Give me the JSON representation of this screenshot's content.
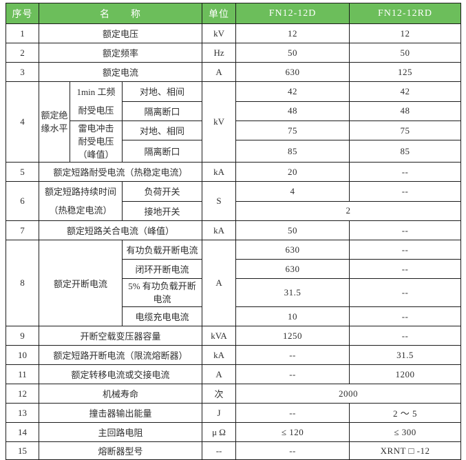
{
  "colors": {
    "header_bg": "#6cbe5b",
    "header_text": "#ffffff",
    "border": "#1a1a1a",
    "body_text": "#2e2e2e"
  },
  "table": {
    "header": {
      "seq": "序号",
      "name": "名　　称",
      "unit": "单位",
      "model_d": "FN12-12D",
      "model_rd": "FN12-12RD"
    },
    "r1": {
      "seq": "1",
      "name": "额定电压",
      "unit": "kV",
      "d": "12",
      "rd": "12"
    },
    "r2": {
      "seq": "2",
      "name": "额定频率",
      "unit": "Hz",
      "d": "50",
      "rd": "50"
    },
    "r3": {
      "seq": "3",
      "name": "额定电流",
      "unit": "A",
      "d": "630",
      "rd": "125"
    },
    "r4": {
      "seq": "4",
      "group_lines": [
        "额定绝",
        "缘水平"
      ],
      "unit": "kV",
      "sub1": {
        "label_lines": [
          "1min 工频",
          "耐受电压"
        ],
        "item": "对地、相间",
        "d": "42",
        "rd": "42"
      },
      "sub2": {
        "item": "隔离断口",
        "d": "48",
        "rd": "48"
      },
      "sub3": {
        "label_lines": [
          "雷电冲击",
          "耐受电压",
          "（峰值）"
        ],
        "item": "对地、相同",
        "d": "75",
        "rd": "75"
      },
      "sub4": {
        "item": "隔离断口",
        "d": "85",
        "rd": "85"
      }
    },
    "r5": {
      "seq": "5",
      "name": "额定短路耐受电流（热稳定电流）",
      "unit": "kA",
      "d": "20",
      "rd": "--"
    },
    "r6": {
      "seq": "6",
      "group_lines": [
        "额定短路持续时间",
        "（热稳定电流）"
      ],
      "unit": "S",
      "sub1": {
        "item": "负荷开关",
        "d": "4",
        "rd": "--"
      },
      "sub2": {
        "item": "接地开关",
        "merged": "2"
      }
    },
    "r7": {
      "seq": "7",
      "name": "额定短路关合电流（峰值）",
      "unit": "kA",
      "d": "50",
      "rd": "--"
    },
    "r8": {
      "seq": "8",
      "group": "额定开断电流",
      "unit": "A",
      "sub1": {
        "item": "有功负载开断电流",
        "d": "630",
        "rd": "--"
      },
      "sub2": {
        "item": "闭环开断电流",
        "d": "630",
        "rd": "--"
      },
      "sub3": {
        "label_lines": [
          "5% 有功负载开断",
          "电流"
        ],
        "d": "31.5",
        "rd": "--"
      },
      "sub4": {
        "item": "电缆充电电流",
        "d": "10",
        "rd": "--"
      }
    },
    "r9": {
      "seq": "9",
      "name": "开断空载变压器容量",
      "unit": "kVA",
      "d": "1250",
      "rd": "--"
    },
    "r10": {
      "seq": "10",
      "name": "额定短路开断电流（限流熔断器）",
      "unit": "kA",
      "d": "--",
      "rd": "31.5"
    },
    "r11": {
      "seq": "11",
      "name": "额定转移电流或交接电流",
      "unit": "A",
      "d": "--",
      "rd": "1200"
    },
    "r12": {
      "seq": "12",
      "name": "机械寿命",
      "unit": "次",
      "merged": "2000"
    },
    "r13": {
      "seq": "13",
      "name": "撞击器输出能量",
      "unit": "J",
      "d": "--",
      "rd": "2 ～ 5"
    },
    "r14": {
      "seq": "14",
      "name": "主回路电阻",
      "unit": "μ Ω",
      "d": "≤ 120",
      "rd": "≤ 300"
    },
    "r15": {
      "seq": "15",
      "name": "熔断器型号",
      "unit": "--",
      "d": "--",
      "rd": "XRNT □ -12"
    }
  }
}
